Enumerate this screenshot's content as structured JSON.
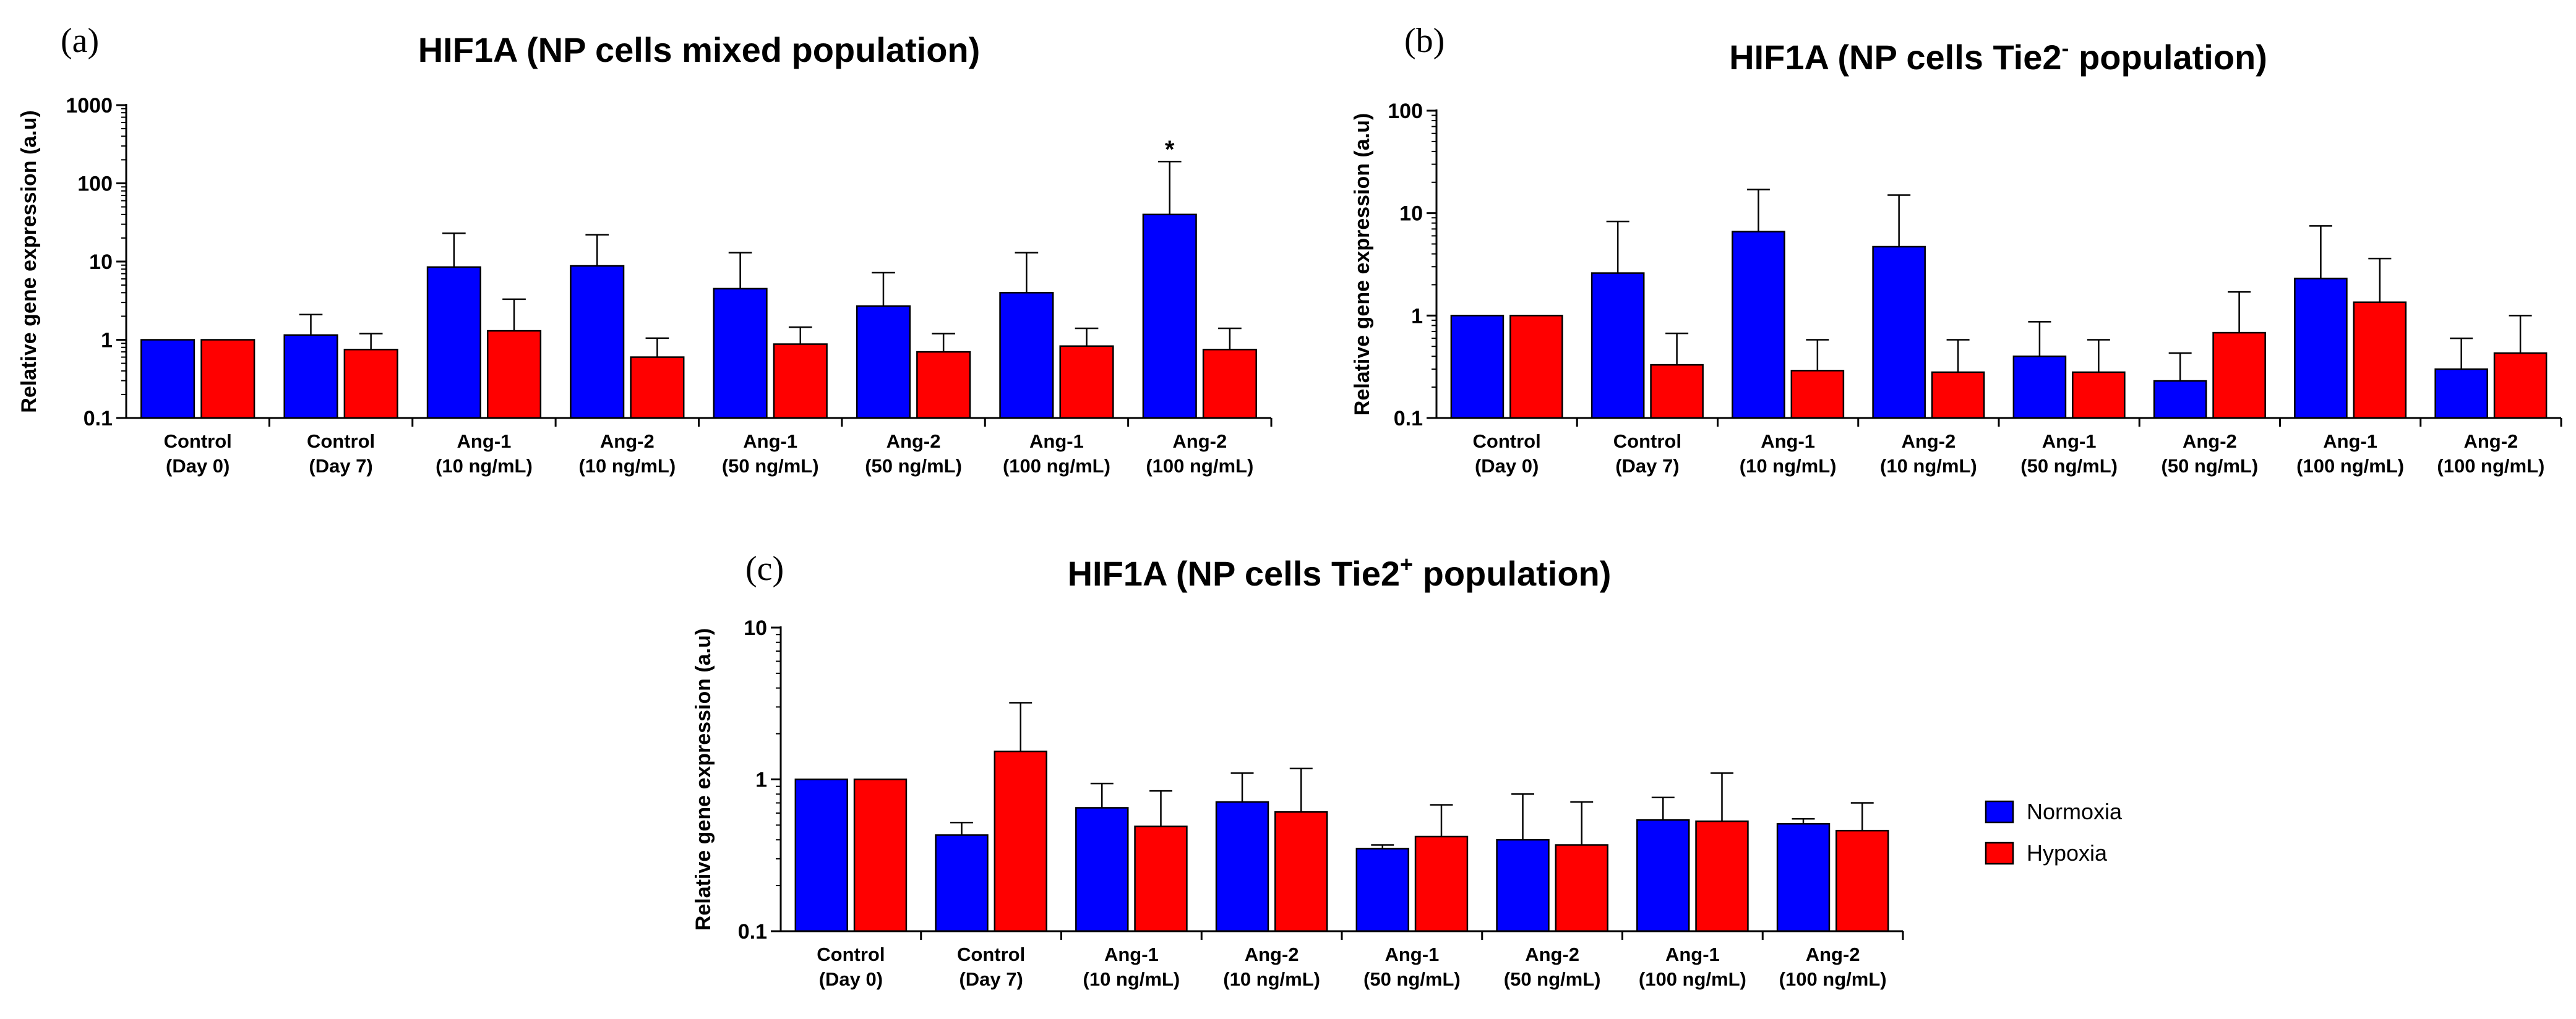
{
  "legend": [
    {
      "name": "Normoxia",
      "color": "#0000ff"
    },
    {
      "name": "Hypoxia",
      "color": "#ff0000"
    }
  ],
  "chart_data": [
    {
      "type": "bar",
      "panel_label": "(a)",
      "title_parts": [
        "HIF1A (NP cells mixed population)"
      ],
      "ylabel": "Relative gene expression (a.u)",
      "yscale": "log",
      "ylim": [
        0.1,
        1000
      ],
      "yticks": [
        {
          "v": 0.1,
          "label": "0.1"
        },
        {
          "v": 1,
          "label": "1"
        },
        {
          "v": 10,
          "label": "10"
        },
        {
          "v": 100,
          "label": "100"
        },
        {
          "v": 1000,
          "label": "1000"
        }
      ],
      "categories": [
        [
          "Control",
          "(Day 0)"
        ],
        [
          "Control",
          "(Day 7)"
        ],
        [
          "Ang-1",
          "(10 ng/mL)"
        ],
        [
          "Ang-2",
          "(10 ng/mL)"
        ],
        [
          "Ang-1",
          "(50 ng/mL)"
        ],
        [
          "Ang-2",
          "(50 ng/mL)"
        ],
        [
          "Ang-1",
          "(100 ng/mL)"
        ],
        [
          "Ang-2",
          "(100 ng/mL)"
        ]
      ],
      "series": [
        {
          "name": "Normoxia",
          "values": [
            1.0,
            1.15,
            8.5,
            8.8,
            4.5,
            2.7,
            4.0,
            40
          ],
          "errors": [
            null,
            2.1,
            23,
            22,
            13,
            7.2,
            13,
            190
          ]
        },
        {
          "name": "Hypoxia",
          "values": [
            1.0,
            0.75,
            1.3,
            0.6,
            0.88,
            0.7,
            0.83,
            0.75
          ],
          "errors": [
            null,
            1.2,
            3.3,
            1.05,
            1.45,
            1.2,
            1.4,
            1.4
          ]
        }
      ],
      "annotations": [
        {
          "category": 7,
          "series": 0,
          "text": "*"
        }
      ]
    },
    {
      "type": "bar",
      "panel_label": "(b)",
      "title_parts": [
        "HIF1A (NP cells Tie2",
        "-",
        " population)"
      ],
      "ylabel": "Relative gene expression (a.u)",
      "yscale": "log",
      "ylim": [
        0.1,
        100
      ],
      "yticks": [
        {
          "v": 0.1,
          "label": "0.1"
        },
        {
          "v": 1,
          "label": "1"
        },
        {
          "v": 10,
          "label": "10"
        },
        {
          "v": 100,
          "label": "100"
        }
      ],
      "categories": [
        [
          "Control",
          "(Day 0)"
        ],
        [
          "Control",
          "(Day 7)"
        ],
        [
          "Ang-1",
          "(10 ng/mL)"
        ],
        [
          "Ang-2",
          "(10 ng/mL)"
        ],
        [
          "Ang-1",
          "(50 ng/mL)"
        ],
        [
          "Ang-2",
          "(50 ng/mL)"
        ],
        [
          "Ang-1",
          "(100 ng/mL)"
        ],
        [
          "Ang-2",
          "(100 ng/mL)"
        ]
      ],
      "series": [
        {
          "name": "Normoxia",
          "values": [
            1.0,
            2.6,
            6.6,
            4.7,
            0.4,
            0.23,
            2.3,
            0.3
          ],
          "errors": [
            null,
            8.3,
            17,
            15,
            0.87,
            0.43,
            7.5,
            0.6
          ]
        },
        {
          "name": "Hypoxia",
          "values": [
            1.0,
            0.33,
            0.29,
            0.28,
            0.28,
            0.68,
            1.35,
            0.43
          ],
          "errors": [
            null,
            0.67,
            0.58,
            0.58,
            0.58,
            1.7,
            3.6,
            1.0
          ]
        }
      ],
      "annotations": []
    },
    {
      "type": "bar",
      "panel_label": "(c)",
      "title_parts": [
        "HIF1A (NP cells Tie2",
        "+",
        " population)"
      ],
      "ylabel": "Relative gene expression (a.u)",
      "yscale": "log",
      "ylim": [
        0.1,
        10
      ],
      "yticks": [
        {
          "v": 0.1,
          "label": "0.1"
        },
        {
          "v": 1,
          "label": "1"
        },
        {
          "v": 10,
          "label": "10"
        }
      ],
      "categories": [
        [
          "Control",
          "(Day 0)"
        ],
        [
          "Control",
          "(Day 7)"
        ],
        [
          "Ang-1",
          "(10 ng/mL)"
        ],
        [
          "Ang-2",
          "(10 ng/mL)"
        ],
        [
          "Ang-1",
          "(50 ng/mL)"
        ],
        [
          "Ang-2",
          "(50 ng/mL)"
        ],
        [
          "Ang-1",
          "(100 ng/mL)"
        ],
        [
          "Ang-2",
          "(100 ng/mL)"
        ]
      ],
      "series": [
        {
          "name": "Normoxia",
          "values": [
            1.0,
            0.43,
            0.65,
            0.71,
            0.35,
            0.4,
            0.54,
            0.51
          ],
          "errors": [
            null,
            0.52,
            0.94,
            1.1,
            0.37,
            0.8,
            0.76,
            0.55
          ]
        },
        {
          "name": "Hypoxia",
          "values": [
            1.0,
            1.53,
            0.49,
            0.61,
            0.42,
            0.37,
            0.53,
            0.46
          ],
          "errors": [
            null,
            3.2,
            0.84,
            1.18,
            0.68,
            0.71,
            1.1,
            0.7
          ]
        }
      ],
      "annotations": []
    }
  ]
}
